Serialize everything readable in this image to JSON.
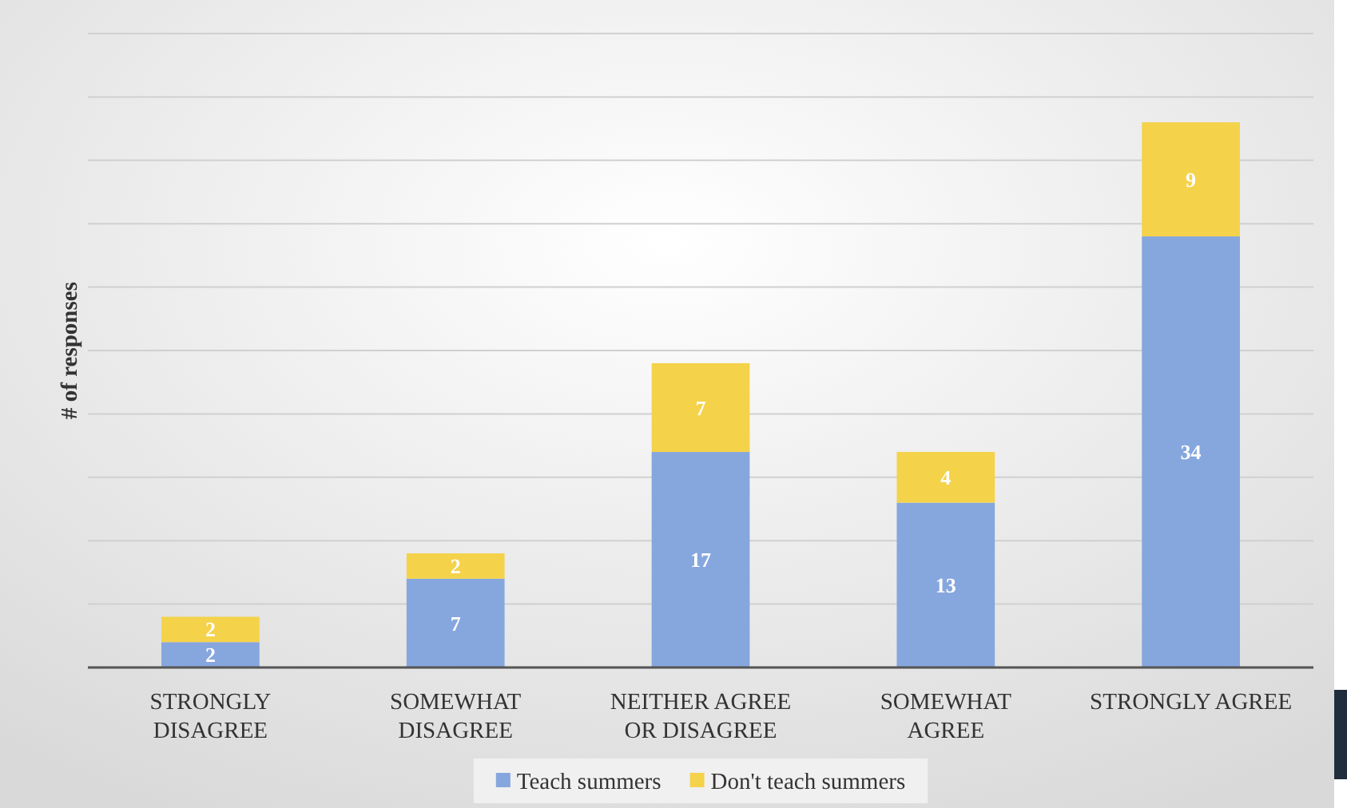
{
  "chart_data": {
    "type": "bar",
    "stacked": true,
    "ylabel": "# of responses",
    "categories": [
      "STRONGLY\nDISAGREE",
      "SOMEWHAT\nDISAGREE",
      "NEITHER AGREE\nOR DISAGREE",
      "SOMEWHAT\nAGREE",
      "STRONGLY AGREE"
    ],
    "series": [
      {
        "name": "Teach summers",
        "color": "#86a6de",
        "values": [
          2,
          7,
          17,
          13,
          34
        ]
      },
      {
        "name": "Don't teach summers",
        "color": "#f4d24a",
        "values": [
          2,
          2,
          7,
          4,
          9
        ]
      }
    ],
    "ylim": [
      0,
      50
    ],
    "yticks": [
      {
        "value": 0,
        "label": null
      },
      {
        "value": 5,
        "label": null
      },
      {
        "value": 10,
        "label": null
      },
      {
        "value": 15,
        "label": null
      },
      {
        "value": 20,
        "label": null
      },
      {
        "value": 25,
        "label": null
      },
      {
        "value": 30,
        "label": null
      },
      {
        "value": 35,
        "label": null
      },
      {
        "value": 40,
        "label": null
      },
      {
        "value": 45,
        "label": null
      },
      {
        "value": 50,
        "label": null
      }
    ],
    "grid": "y",
    "legend": "bottom",
    "data_labels": true,
    "tick_labels": "x"
  }
}
